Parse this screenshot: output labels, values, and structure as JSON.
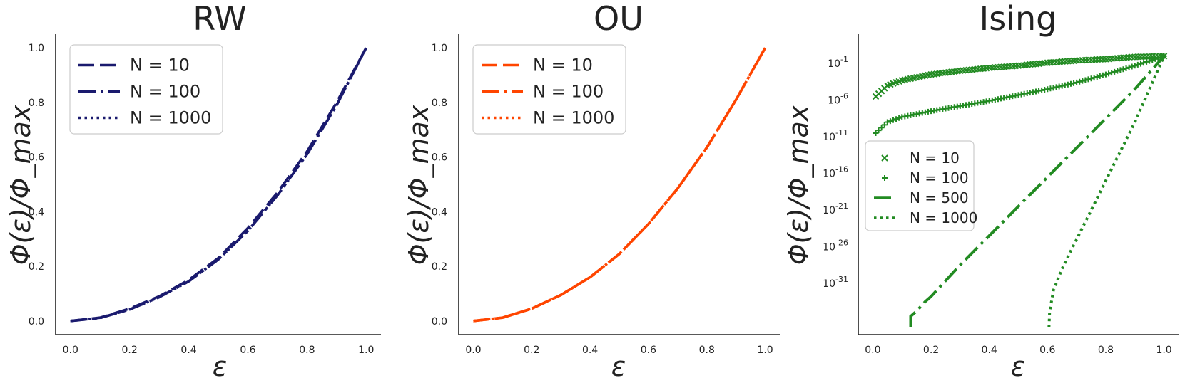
{
  "chart_data": [
    {
      "type": "line",
      "title": "RW",
      "xlabel": "ε",
      "ylabel": "Φ(ε)/Φ_max",
      "xlim": [
        -0.05,
        1.05
      ],
      "ylim": [
        -0.05,
        1.05
      ],
      "xticks": [
        "0.0",
        "0.2",
        "0.4",
        "0.6",
        "0.8",
        "1.0"
      ],
      "yticks": [
        "0.0",
        "0.2",
        "0.4",
        "0.6",
        "0.8",
        "1.0"
      ],
      "grid": false,
      "legend": "top-left",
      "color": "#1a1a6e",
      "x": [
        0.0,
        0.1,
        0.2,
        0.3,
        0.4,
        0.5,
        0.6,
        0.7,
        0.8,
        0.9,
        1.0
      ],
      "series": [
        {
          "name": "N = 10",
          "style": "dashed",
          "values": [
            0.0,
            0.012,
            0.045,
            0.09,
            0.15,
            0.23,
            0.34,
            0.47,
            0.62,
            0.8,
            1.0
          ]
        },
        {
          "name": "N = 100",
          "style": "dashdot",
          "values": [
            0.0,
            0.011,
            0.042,
            0.087,
            0.145,
            0.225,
            0.33,
            0.46,
            0.61,
            0.79,
            1.0
          ]
        },
        {
          "name": "N = 1000",
          "style": "dotted",
          "values": [
            0.0,
            0.011,
            0.042,
            0.087,
            0.145,
            0.225,
            0.33,
            0.46,
            0.61,
            0.79,
            1.0
          ]
        }
      ]
    },
    {
      "type": "line",
      "title": "OU",
      "xlabel": "ε",
      "ylabel": "Φ(ε)/Φ_max",
      "xlim": [
        -0.05,
        1.05
      ],
      "ylim": [
        -0.05,
        1.05
      ],
      "xticks": [
        "0.0",
        "0.2",
        "0.4",
        "0.6",
        "0.8",
        "1.0"
      ],
      "yticks": [
        "0.0",
        "0.2",
        "0.4",
        "0.6",
        "0.8",
        "1.0"
      ],
      "grid": false,
      "legend": "top-left",
      "color": "#ff4500",
      "x": [
        0.0,
        0.1,
        0.2,
        0.3,
        0.4,
        0.5,
        0.6,
        0.7,
        0.8,
        0.9,
        1.0
      ],
      "series": [
        {
          "name": "N = 10",
          "style": "dashed",
          "values": [
            0.0,
            0.012,
            0.045,
            0.095,
            0.16,
            0.245,
            0.355,
            0.485,
            0.635,
            0.81,
            1.0
          ]
        },
        {
          "name": "N = 100",
          "style": "dashdot",
          "values": [
            0.0,
            0.012,
            0.045,
            0.095,
            0.16,
            0.245,
            0.355,
            0.485,
            0.635,
            0.81,
            1.0
          ]
        },
        {
          "name": "N = 1000",
          "style": "dotted",
          "values": [
            0.0,
            0.012,
            0.045,
            0.095,
            0.16,
            0.245,
            0.355,
            0.485,
            0.635,
            0.81,
            1.0
          ]
        }
      ]
    },
    {
      "type": "scatter",
      "title": "Ising",
      "xlabel": "ε",
      "ylabel": "Φ(ε)/Φ_max",
      "yscale": "log",
      "xlim": [
        -0.05,
        1.05
      ],
      "ylim_log10": [
        -38,
        3
      ],
      "xticks": [
        "0.0",
        "0.2",
        "0.4",
        "0.6",
        "0.8",
        "1.0"
      ],
      "yticks": [
        {
          "base": "10",
          "exp": "-1",
          "log10": -1
        },
        {
          "base": "10",
          "exp": "-6",
          "log10": -6
        },
        {
          "base": "10",
          "exp": "-11",
          "log10": -11
        },
        {
          "base": "10",
          "exp": "-16",
          "log10": -16
        },
        {
          "base": "10",
          "exp": "-21",
          "log10": -21
        },
        {
          "base": "10",
          "exp": "-26",
          "log10": -26
        },
        {
          "base": "10",
          "exp": "-31",
          "log10": -31
        }
      ],
      "grid": false,
      "legend": "center-left",
      "color": "#228b22",
      "series": [
        {
          "name": "N = 10",
          "style": "x-marker",
          "x": [
            0.01,
            0.05,
            0.1,
            0.2,
            0.3,
            0.4,
            0.5,
            0.6,
            0.7,
            0.8,
            0.9,
            1.0
          ],
          "log10": [
            -5.5,
            -4.0,
            -3.3,
            -2.5,
            -2.0,
            -1.6,
            -1.3,
            -0.9,
            -0.6,
            -0.4,
            -0.1,
            0.0
          ]
        },
        {
          "name": "N = 100",
          "style": "plus-marker",
          "x": [
            0.01,
            0.05,
            0.1,
            0.2,
            0.3,
            0.4,
            0.5,
            0.6,
            0.7,
            0.8,
            0.9,
            1.0
          ],
          "log10": [
            -10.5,
            -9.0,
            -8.3,
            -7.5,
            -6.8,
            -6.1,
            -5.3,
            -4.5,
            -3.6,
            -2.5,
            -1.3,
            0.0
          ]
        },
        {
          "name": "N = 500",
          "style": "dashdot",
          "x": [
            0.13,
            0.13,
            0.15,
            0.18,
            0.2,
            0.3,
            0.4,
            0.5,
            0.6,
            0.7,
            0.8,
            0.9,
            1.0
          ],
          "log10": [
            -37.0,
            -35.5,
            -34.8,
            -33.5,
            -32.8,
            -28.5,
            -24.5,
            -20.5,
            -16.5,
            -12.5,
            -8.5,
            -4.5,
            0.0
          ]
        },
        {
          "name": "N = 1000",
          "style": "dotted",
          "x": [
            0.605,
            0.607,
            0.62,
            0.65,
            0.7,
            0.75,
            0.8,
            0.85,
            0.9,
            0.95,
            1.0
          ],
          "log10": [
            -37.0,
            -35.0,
            -32.0,
            -29.0,
            -25.0,
            -21.0,
            -17.0,
            -13.0,
            -9.0,
            -4.5,
            0.0
          ]
        }
      ]
    }
  ]
}
